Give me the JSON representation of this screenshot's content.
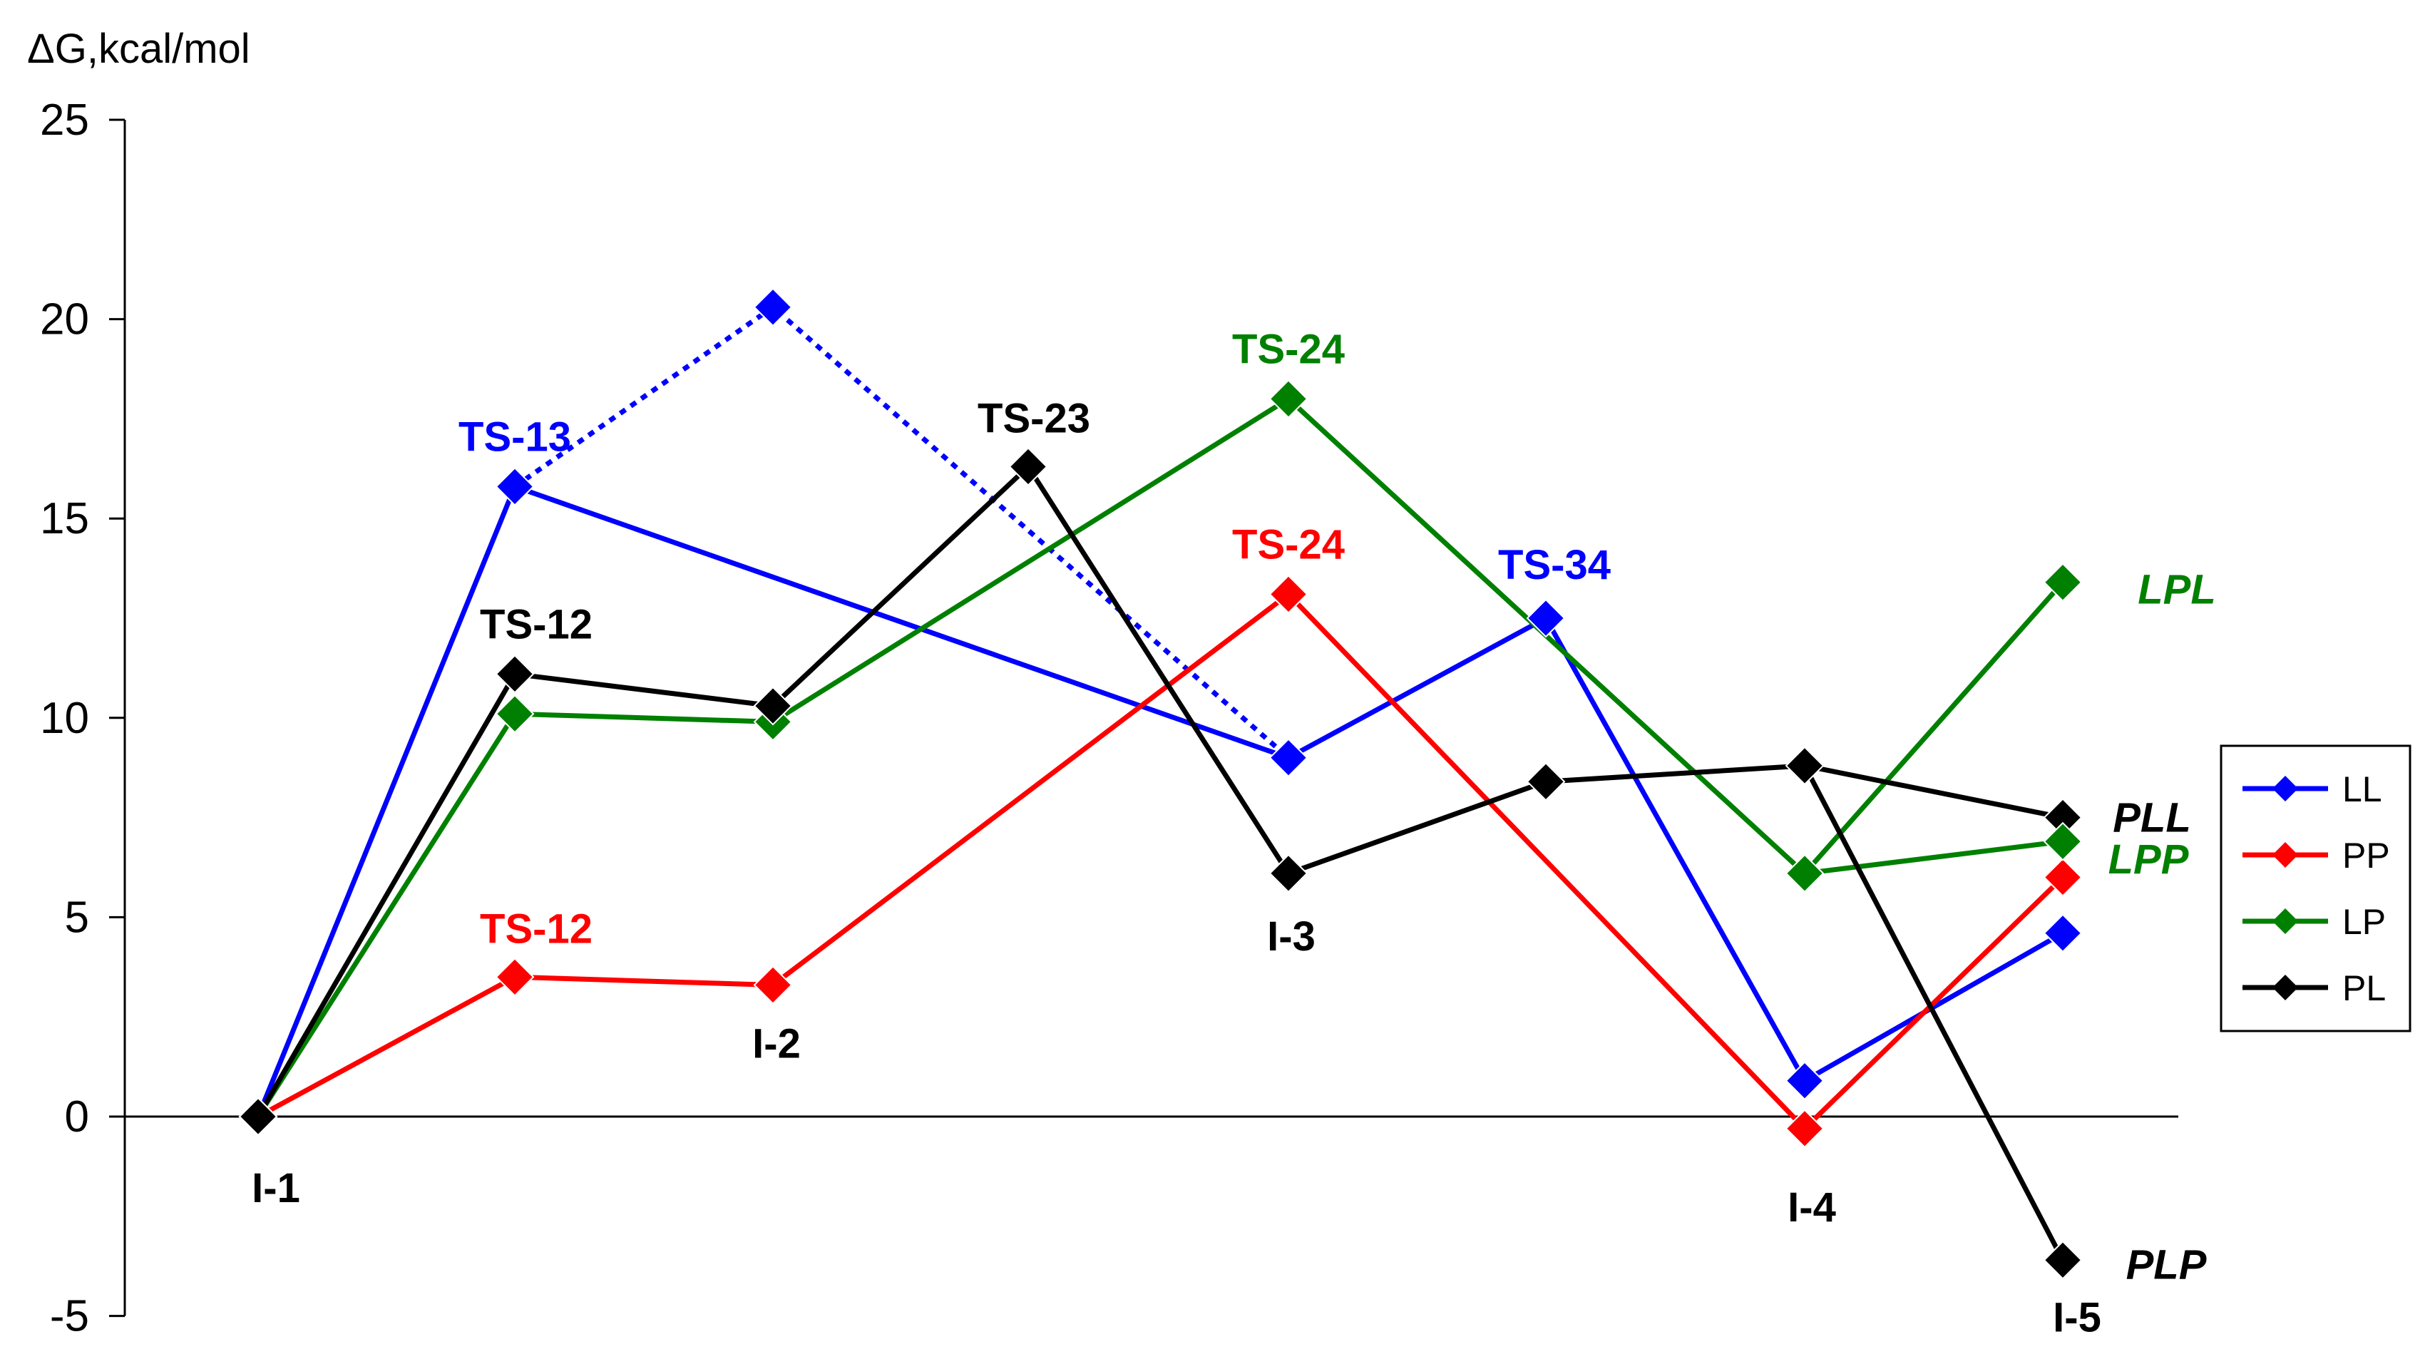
{
  "chart_data": {
    "type": "line",
    "ylabel": "ΔG,kcal/mol",
    "xlabel": "",
    "ylim": [
      -5,
      25
    ],
    "yticks": [
      -5,
      0,
      5,
      10,
      15,
      20,
      25
    ],
    "x_positions": [
      0,
      1,
      2,
      3,
      4,
      5,
      6,
      7
    ],
    "grid": false,
    "legend_position": "right",
    "series": [
      {
        "name": "LL",
        "color": "#0000ff",
        "points": [
          [
            0,
            0
          ],
          [
            1,
            15.8
          ],
          [
            4,
            9.0
          ],
          [
            5,
            12.5
          ],
          [
            6,
            0.9
          ],
          [
            7,
            4.6
          ]
        ]
      },
      {
        "name": "PP",
        "color": "#ff0000",
        "points": [
          [
            0,
            0
          ],
          [
            1,
            3.5
          ],
          [
            2,
            3.3
          ],
          [
            4,
            13.1
          ],
          [
            6,
            -0.3
          ],
          [
            7,
            6.0
          ]
        ]
      },
      {
        "name": "LP",
        "color": "#008000",
        "points": [
          [
            0,
            0
          ],
          [
            1,
            10.1
          ],
          [
            2,
            9.9
          ],
          [
            4,
            18.0
          ],
          [
            6,
            6.1
          ],
          [
            7,
            13.4
          ]
        ]
      },
      {
        "name": "PL",
        "color": "#000000",
        "points": [
          [
            0,
            0
          ],
          [
            1,
            11.1
          ],
          [
            2,
            10.3
          ],
          [
            3,
            16.3
          ],
          [
            4,
            6.1
          ],
          [
            5,
            8.4
          ],
          [
            6,
            8.8
          ],
          [
            7,
            7.5
          ]
        ]
      }
    ],
    "extra_points": [
      {
        "series": "LL",
        "color": "#0000ff",
        "points": [
          [
            2,
            20.3
          ]
        ]
      },
      {
        "series": "LP",
        "color": "#008000",
        "points": [
          [
            7,
            6.9
          ]
        ]
      },
      {
        "series": "PL",
        "color": "#000000",
        "points": [
          [
            7,
            -3.6
          ]
        ]
      }
    ],
    "dotted_paths": [
      {
        "series": "LL",
        "color": "#0000ff",
        "points": [
          [
            1,
            15.8
          ],
          [
            2,
            20.3
          ],
          [
            4,
            9.0
          ]
        ]
      }
    ],
    "extra_segments": [
      {
        "series": "LP",
        "color": "#008000",
        "points": [
          [
            6,
            6.1
          ],
          [
            7,
            6.9
          ]
        ]
      },
      {
        "series": "PL",
        "color": "#000000",
        "points": [
          [
            6,
            8.8
          ],
          [
            7,
            -3.6
          ]
        ]
      }
    ],
    "annotations": [
      {
        "text": "TS-13",
        "x": 1,
        "y": 15.8,
        "color": "#0000ff"
      },
      {
        "text": "TS-12",
        "x": 1,
        "y": 11.1,
        "color": "#000000"
      },
      {
        "text": "TS-12",
        "x": 1,
        "y": 3.5,
        "color": "#ff0000"
      },
      {
        "text": "I-1",
        "x": 0,
        "y": 0,
        "color": "#000000"
      },
      {
        "text": "I-2",
        "x": 2,
        "y": 3.3,
        "color": "#000000"
      },
      {
        "text": "TS-23",
        "x": 3,
        "y": 16.3,
        "color": "#000000"
      },
      {
        "text": "TS-24",
        "x": 4,
        "y": 18.0,
        "color": "#008000"
      },
      {
        "text": "TS-24",
        "x": 4,
        "y": 13.1,
        "color": "#ff0000"
      },
      {
        "text": "I-3",
        "x": 4,
        "y": 6.1,
        "color": "#000000"
      },
      {
        "text": "TS-34",
        "x": 5,
        "y": 12.5,
        "color": "#0000ff"
      },
      {
        "text": "I-4",
        "x": 6,
        "y": -0.3,
        "color": "#000000"
      },
      {
        "text": "I-5",
        "x": 7,
        "y": -3.6,
        "color": "#000000"
      },
      {
        "text": "LPL",
        "x": 7,
        "y": 13.4,
        "color": "#008000",
        "italic": true
      },
      {
        "text": "PLL",
        "x": 7,
        "y": 7.5,
        "color": "#000000",
        "italic": true
      },
      {
        "text": "LPP",
        "x": 7,
        "y": 6.9,
        "color": "#008000",
        "italic": true
      },
      {
        "text": "PLP",
        "x": 7,
        "y": -3.6,
        "color": "#000000",
        "italic": true
      }
    ]
  }
}
